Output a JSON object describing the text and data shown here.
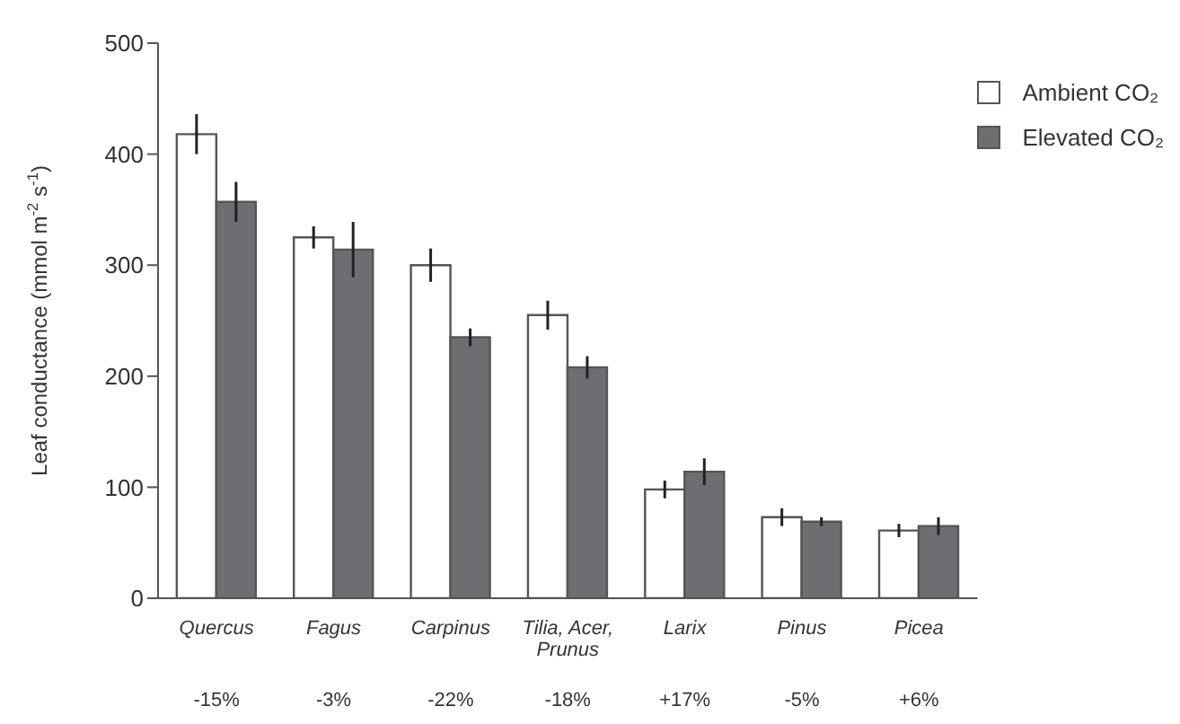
{
  "chart_data": {
    "type": "bar",
    "ylabel": "Leaf conductance (mmol m$^{-2}$ s$^{-1}$)",
    "categories": [
      "Quercus",
      "Fagus",
      "Carpinus",
      "Tilia, Acer, Prunus",
      "Larix",
      "Pinus",
      "Picea"
    ],
    "series": [
      {
        "name": "Ambient CO₂",
        "color": "#ffffff",
        "values": [
          418,
          325,
          300,
          255,
          98,
          73,
          61
        ],
        "errors": [
          18,
          10,
          15,
          13,
          8,
          8,
          6
        ]
      },
      {
        "name": "Elevated CO₂",
        "color": "#6d6e71",
        "values": [
          357,
          314,
          235,
          208,
          114,
          69,
          65
        ],
        "errors": [
          18,
          25,
          8,
          10,
          12,
          4,
          8
        ]
      }
    ],
    "ylim": [
      0,
      500
    ],
    "yticks": [
      0,
      100,
      200,
      300,
      400,
      500
    ],
    "grid": false,
    "legend": "top right",
    "annotations": [
      "-15%",
      "-3%",
      "-22%",
      "-18%",
      "+17%",
      "-5%",
      "+6%"
    ]
  }
}
